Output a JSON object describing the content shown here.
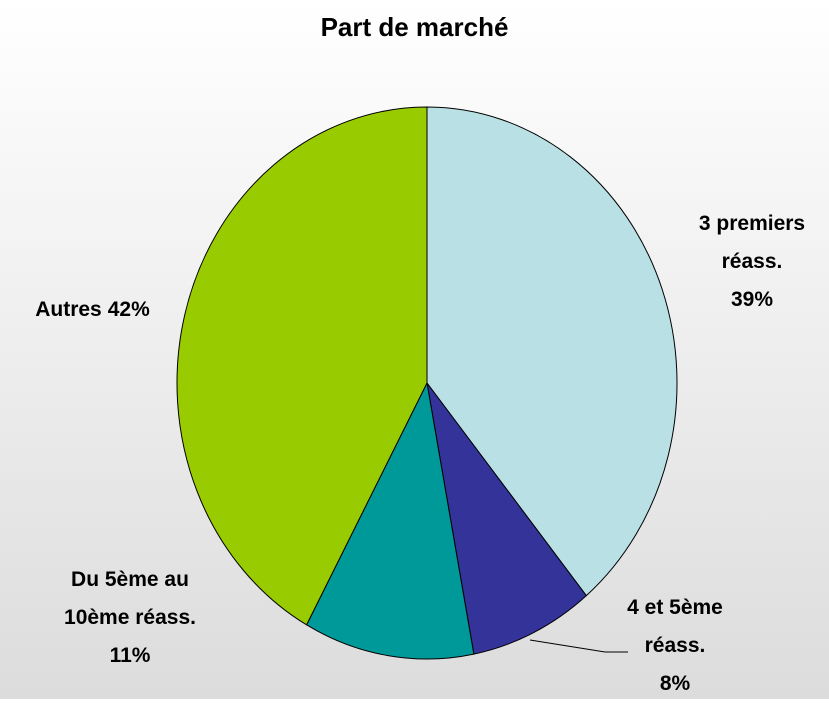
{
  "chart_data": {
    "type": "pie",
    "title": "Part de marché",
    "categories": [
      "3 premiers réass.",
      "4 et 5ème réass.",
      "Du 5ème au 10ème réass.",
      "Autres"
    ],
    "values": [
      39,
      8,
      11,
      42
    ],
    "value_labels": [
      "39%",
      "8%",
      "11%",
      "42%"
    ],
    "colors": [
      "#b9e1e5",
      "#333399",
      "#009999",
      "#99cc00"
    ]
  }
}
